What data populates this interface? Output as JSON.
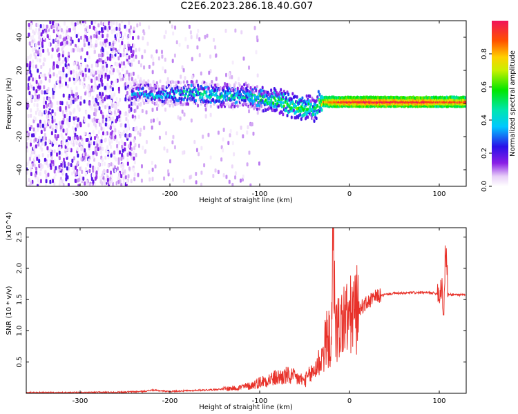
{
  "page_title": "C2E6.2023.286.18.40.G07",
  "chart_data": [
    {
      "type": "heatmap",
      "title": "C2E6.2023.286.18.40.G07",
      "xlabel": "Height of straight line (km)",
      "ylabel": "Frequency (Hz)",
      "xlim": [
        -360,
        130
      ],
      "ylim": [
        -50,
        50
      ],
      "xticks": [
        -300,
        -200,
        -100,
        0,
        100
      ],
      "yticks": [
        -40,
        -20,
        0,
        20,
        40
      ],
      "colorbar": {
        "label": "Normalized spectral amplitude",
        "range": [
          0.0,
          1.0
        ],
        "ticks": [
          0.0,
          0.2,
          0.4,
          0.6,
          0.8
        ]
      },
      "features": {
        "noise_region": {
          "x_from": -360,
          "x_to": -240,
          "freq_range": [
            -50,
            50
          ],
          "amplitude": "low"
        },
        "sparse_noise_region": {
          "x_from": -240,
          "x_to": -100,
          "freq_range": [
            -50,
            50
          ],
          "amplitude": "very low"
        },
        "signal_track": {
          "x": [
            -242,
            -220,
            -200,
            -180,
            -160,
            -140,
            -120,
            -100,
            -80,
            -70,
            -60,
            -50,
            -45,
            -40,
            -35,
            -30,
            -20,
            0,
            20,
            50,
            80,
            100,
            130
          ],
          "freq": [
            7,
            6,
            6,
            6,
            6,
            5,
            5,
            3,
            2,
            0,
            -2,
            -3,
            -2,
            -5,
            0,
            1,
            1,
            1,
            1,
            1,
            1,
            1,
            1
          ],
          "amplitude": [
            0.35,
            0.4,
            0.4,
            0.45,
            0.45,
            0.45,
            0.45,
            0.5,
            0.55,
            0.55,
            0.6,
            0.6,
            0.55,
            0.5,
            0.6,
            0.8,
            0.9,
            0.95,
            0.95,
            0.95,
            0.95,
            0.9,
            0.9
          ]
        }
      }
    },
    {
      "type": "line",
      "xlabel": "Height of straight line (km)",
      "ylabel": "SNR (10 * v/v)",
      "y_multiplier": "(x10^4)",
      "xlim": [
        -360,
        130
      ],
      "ylim": [
        0,
        2.65
      ],
      "xticks": [
        -300,
        -200,
        -100,
        0,
        100
      ],
      "yticks": [
        0.5,
        1.0,
        1.5,
        2.0,
        2.5
      ],
      "series": [
        {
          "name": "SNR",
          "color": "#e8322a",
          "x": [
            -360,
            -300,
            -250,
            -230,
            -220,
            -200,
            -150,
            -130,
            -110,
            -100,
            -90,
            -80,
            -70,
            -60,
            -50,
            -40,
            -30,
            -25,
            -20,
            -18,
            -15,
            -10,
            -5,
            0,
            5,
            10,
            15,
            20,
            25,
            30,
            40,
            50,
            60,
            70,
            80,
            90,
            95,
            100,
            103,
            105,
            107,
            110,
            120,
            130
          ],
          "y": [
            0.01,
            0.01,
            0.02,
            0.03,
            0.05,
            0.03,
            0.06,
            0.08,
            0.12,
            0.18,
            0.22,
            0.25,
            0.28,
            0.25,
            0.2,
            0.35,
            0.6,
            0.9,
            0.8,
            2.6,
            1.0,
            1.1,
            1.2,
            1.2,
            1.3,
            1.35,
            1.4,
            1.45,
            1.5,
            1.55,
            1.58,
            1.6,
            1.6,
            1.61,
            1.61,
            1.61,
            1.6,
            1.6,
            1.75,
            1.2,
            2.4,
            1.58,
            1.58,
            1.57
          ]
        }
      ]
    }
  ]
}
